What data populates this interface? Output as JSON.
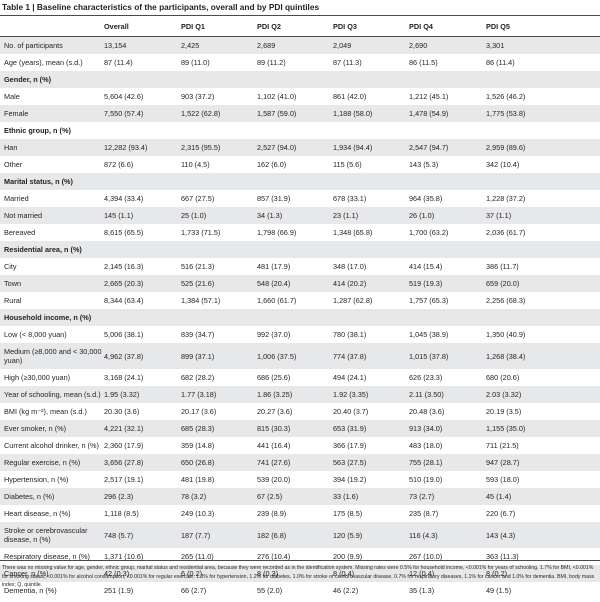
{
  "title": "Table 1 | Baseline characteristics of the participants, overall and by PDI quintiles",
  "columns": [
    "",
    "Overall",
    "PDI Q1",
    "PDI Q2",
    "PDI Q3",
    "PDI Q4",
    "PDI Q5"
  ],
  "rows": [
    {
      "cells": [
        "No. of participants",
        "13,154",
        "2,425",
        "2,689",
        "2,049",
        "2,690",
        "3,301"
      ]
    },
    {
      "cells": [
        "Age (years), mean (s.d.)",
        "87 (11.4)",
        "89 (11.0)",
        "89 (11.2)",
        "87 (11.3)",
        "86 (11.5)",
        "86 (11.4)"
      ]
    },
    {
      "cells": [
        "Gender, n (%)"
      ]
    },
    {
      "cells": [
        "Male",
        "5,604 (42.6)",
        "903 (37.2)",
        "1,102 (41.0)",
        "861 (42.0)",
        "1,212 (45.1)",
        "1,526 (46.2)"
      ]
    },
    {
      "cells": [
        "Female",
        "7,550 (57.4)",
        "1,522 (62.8)",
        "1,587 (59.0)",
        "1,188 (58.0)",
        "1,478 (54.9)",
        "1,775 (53.8)"
      ]
    },
    {
      "cells": [
        "Ethnic group, n (%)"
      ]
    },
    {
      "cells": [
        "Han",
        "12,282 (93.4)",
        "2,315 (95.5)",
        "2,527 (94.0)",
        "1,934 (94.4)",
        "2,547 (94.7)",
        "2,959 (89.6)"
      ]
    },
    {
      "cells": [
        "Other",
        "872 (6.6)",
        "110 (4.5)",
        "162 (6.0)",
        "115 (5.6)",
        "143 (5.3)",
        "342 (10.4)"
      ]
    },
    {
      "cells": [
        "Marital status, n (%)"
      ]
    },
    {
      "cells": [
        "Married",
        "4,394 (33.4)",
        "667 (27.5)",
        "857 (31.9)",
        "678 (33.1)",
        "964 (35.8)",
        "1,228 (37.2)"
      ]
    },
    {
      "cells": [
        "Not married",
        "145 (1.1)",
        "25 (1.0)",
        "34 (1.3)",
        "23 (1.1)",
        "26 (1.0)",
        "37 (1.1)"
      ]
    },
    {
      "cells": [
        "Bereaved",
        "8,615 (65.5)",
        "1,733 (71.5)",
        "1,798 (66.9)",
        "1,348 (65.8)",
        "1,700 (63.2)",
        "2,036 (61.7)"
      ]
    },
    {
      "cells": [
        "Residential area, n (%)"
      ]
    },
    {
      "cells": [
        "City",
        "2,145 (16.3)",
        "516 (21.3)",
        "481 (17.9)",
        "348 (17.0)",
        "414 (15.4)",
        "386 (11.7)"
      ]
    },
    {
      "cells": [
        "Town",
        "2,665 (20.3)",
        "525 (21.6)",
        "548 (20.4)",
        "414 (20.2)",
        "519 (19.3)",
        "659 (20.0)"
      ]
    },
    {
      "cells": [
        "Rural",
        "8,344 (63.4)",
        "1,384 (57.1)",
        "1,660 (61.7)",
        "1,287 (62.8)",
        "1,757 (65.3)",
        "2,256 (68.3)"
      ]
    },
    {
      "cells": [
        "Household income, n (%)"
      ]
    },
    {
      "cells": [
        "Low (< 8,000 yuan)",
        "5,006 (38.1)",
        "839 (34.7)",
        "992 (37.0)",
        "780 (38.1)",
        "1,045 (38.9)",
        "1,350 (40.9)"
      ]
    },
    {
      "cells": [
        "Medium (≥8,000 and < 30,000 yuan)",
        "4,962 (37.8)",
        "899 (37.1)",
        "1,006 (37.5)",
        "774 (37.8)",
        "1,015 (37.8)",
        "1,268 (38.4)"
      ]
    },
    {
      "cells": [
        "High (≥30,000 yuan)",
        "3,168 (24.1)",
        "682 (28.2)",
        "686 (25.6)",
        "494 (24.1)",
        "626 (23.3)",
        "680 (20.6)"
      ]
    },
    {
      "cells": [
        "Year of schooling, mean (s.d.)",
        "1.95 (3.32)",
        "1.77 (3.18)",
        "1.86 (3.25)",
        "1.92 (3.35)",
        "2.11 (3.50)",
        "2.03 (3.32)"
      ]
    },
    {
      "cells": [
        "BMI (kg m⁻²), mean (s.d.)",
        "20.30 (3.6)",
        "20.17 (3.6)",
        "20.27 (3.6)",
        "20.40 (3.7)",
        "20.48 (3.6)",
        "20.19 (3.5)"
      ]
    },
    {
      "cells": [
        "Ever smoker, n (%)",
        "4,221 (32.1)",
        "685 (28.3)",
        "815 (30.3)",
        "653 (31.9)",
        "913 (34.0)",
        "1,155 (35.0)"
      ]
    },
    {
      "cells": [
        "Current alcohol drinker, n (%)",
        "2,360 (17.9)",
        "359 (14.8)",
        "441 (16.4)",
        "366 (17.9)",
        "483 (18.0)",
        "711 (21.5)"
      ]
    },
    {
      "cells": [
        "Regular exercise, n (%)",
        "3,656 (27.8)",
        "650 (26.8)",
        "741 (27.6)",
        "563 (27.5)",
        "755 (28.1)",
        "947 (28.7)"
      ]
    },
    {
      "cells": [
        "Hypertension, n (%)",
        "2,517 (19.1)",
        "481 (19.8)",
        "539 (20.0)",
        "394 (19.2)",
        "510 (19.0)",
        "593 (18.0)"
      ]
    },
    {
      "cells": [
        "Diabetes, n (%)",
        "296 (2.3)",
        "78 (3.2)",
        "67 (2.5)",
        "33 (1.6)",
        "73 (2.7)",
        "45 (1.4)"
      ]
    },
    {
      "cells": [
        "Heart disease, n (%)",
        "1,118 (8.5)",
        "249 (10.3)",
        "239 (8.9)",
        "175 (8.5)",
        "235 (8.7)",
        "220 (6.7)"
      ]
    },
    {
      "cells": [
        "Stroke or cerebrovascular disease, n (%)",
        "748 (5.7)",
        "187 (7.7)",
        "182 (6.8)",
        "120 (5.9)",
        "116 (4.3)",
        "143 (4.3)"
      ]
    },
    {
      "cells": [
        "Respiratory disease, n (%)",
        "1,371 (10.6)",
        "265 (11.0)",
        "276 (10.4)",
        "200 (9.9)",
        "267 (10.0)",
        "363 (11.3)"
      ]
    },
    {
      "cells": [
        "Cancer, n (%)",
        "42 (0.3)",
        "6 (0.2)",
        "8 (0.3)",
        "8 (0.4)",
        "12 (0.4)",
        "8 (0.2)"
      ]
    },
    {
      "cells": [
        "Dementia, n (%)",
        "251 (1.9)",
        "66 (2.7)",
        "55 (2.0)",
        "46 (2.2)",
        "35 (1.3)",
        "49 (1.5)"
      ]
    }
  ],
  "footnote": "There was no missing value for age, gender, ethnic group, marital status and residential area, because they were recorded as in the identification system. Missing rates were 0.5% for household income, <0.001% for years of schooling, 1.7% for BMI, <0.001% for smoking status, <0.001% for alcohol consumption, <0.001% for regular exercise, 1.3% for hypertension, 1.2% for diabetes, 1.0% for stroke or cerebrovascular disease, 0.7% for respiratory diseases, 1.1% for cancer and 1.0% for dementia. BMI, body mass index; Q, quintile.",
  "colors": {
    "band": "#e7e8e9",
    "rule": "#4a4a4a",
    "text": "#231f20"
  }
}
